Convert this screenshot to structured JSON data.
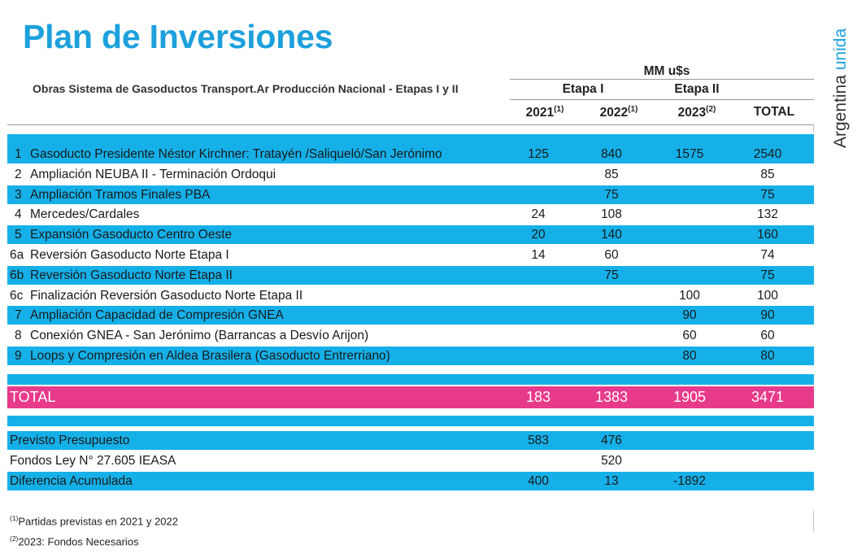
{
  "title": "Plan de Inversiones",
  "brand": {
    "text": "Argentina",
    "accent": "unida"
  },
  "subtitle": "Obras Sistema de Gasoductos Transport.Ar Producción Nacional - Etapas I y II",
  "units": "MM u$s",
  "stages": [
    "Etapa I",
    "Etapa II"
  ],
  "columns": [
    {
      "label": "2021",
      "note": "(1)"
    },
    {
      "label": "2022",
      "note": "(1)"
    },
    {
      "label": "2023",
      "note": "(2)"
    },
    {
      "label": "TOTAL",
      "note": ""
    }
  ],
  "rows": [
    {
      "id": "1",
      "name": "Gasoducto Presidente Néstor Kirchner: Tratayén /Saliqueló/San Jerónimo",
      "v2021": "125",
      "v2022": "840",
      "v2023": "1575",
      "total": "2540"
    },
    {
      "id": "2",
      "name": "Ampliación NEUBA II - Terminación Ordoqui",
      "v2021": "",
      "v2022": "85",
      "v2023": "",
      "total": "85"
    },
    {
      "id": "3",
      "name": "Ampliación Tramos Finales PBA",
      "v2021": "",
      "v2022": "75",
      "v2023": "",
      "total": "75"
    },
    {
      "id": "4",
      "name": "Mercedes/Cardales",
      "v2021": "24",
      "v2022": "108",
      "v2023": "",
      "total": "132"
    },
    {
      "id": "5",
      "name": "Expansión Gasoducto Centro Oeste",
      "v2021": "20",
      "v2022": "140",
      "v2023": "",
      "total": "160"
    },
    {
      "id": "6a",
      "name": "Reversión Gasoducto Norte Etapa I",
      "v2021": "14",
      "v2022": "60",
      "v2023": "",
      "total": "74"
    },
    {
      "id": "6b",
      "name": "Reversión Gasoducto Norte Etapa II",
      "v2021": "",
      "v2022": "75",
      "v2023": "",
      "total": "75"
    },
    {
      "id": "6c",
      "name": "Finalización Reversión Gasoducto Norte Etapa II",
      "v2021": "",
      "v2022": "",
      "v2023": "100",
      "total": "100"
    },
    {
      "id": "7",
      "name": "Ampliación Capacidad de Compresión GNEA",
      "v2021": "",
      "v2022": "",
      "v2023": "90",
      "total": "90"
    },
    {
      "id": "8",
      "name": "Conexión GNEA - San Jerónimo (Barrancas a Desvío Arijon)",
      "v2021": "",
      "v2022": "",
      "v2023": "60",
      "total": "60"
    },
    {
      "id": "9",
      "name": "Loops y Compresión en Aldea Brasilera (Gasoducto Entrerriano)",
      "v2021": "",
      "v2022": "",
      "v2023": "80",
      "total": "80"
    }
  ],
  "total_row": {
    "label": "TOTAL",
    "v2021": "183",
    "v2022": "1383",
    "v2023": "1905",
    "total": "3471"
  },
  "budget_rows": [
    {
      "label": "Previsto Presupuesto",
      "v2021": "583",
      "v2022": "476",
      "v2023": ""
    },
    {
      "label": "Fondos Ley N° 27.605 IEASA",
      "v2021": "",
      "v2022": "520",
      "v2023": ""
    },
    {
      "label": "Diferencia Acumulada",
      "v2021": "400",
      "v2022": "13",
      "v2023": "-1892"
    }
  ],
  "footnotes": [
    {
      "mark": "(1)",
      "text": "Partidas previstas en 2021 y 2022"
    },
    {
      "mark": "(2)",
      "text": "2023: Fondos Necesarios"
    }
  ],
  "colors": {
    "accent_blue": "#16b0e9",
    "title_blue": "#1ca0dc",
    "total_pink": "#e83a8a"
  }
}
